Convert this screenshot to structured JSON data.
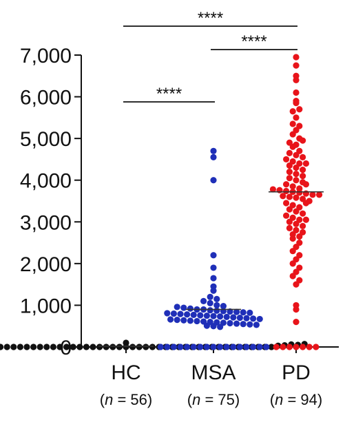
{
  "chart_data": {
    "type": "scatter",
    "title": "",
    "xlabel": "",
    "ylabel": "",
    "ylim": [
      0,
      7000
    ],
    "y_ticks": [
      0,
      1000,
      2000,
      3000,
      4000,
      5000,
      6000,
      7000
    ],
    "y_tick_labels": [
      "0",
      "1,000",
      "2,000",
      "3,000",
      "4,000",
      "5,000",
      "6,000",
      "7,000"
    ],
    "categories": [
      "HC",
      "MSA",
      "PD"
    ],
    "sample_size_labels": [
      {
        "open": "(",
        "n": "n",
        "rest": " = 56)"
      },
      {
        "open": "(",
        "n": "n",
        "rest": " = 75)"
      },
      {
        "open": "(",
        "n": "n",
        "rest": " = 94)"
      }
    ],
    "colors": {
      "HC": "#111111",
      "MSA": "#1f2fb8",
      "PD": "#e8141a"
    },
    "means": {
      "HC": 20,
      "MSA": 900,
      "PD": 3720
    },
    "significance": [
      {
        "from": "HC",
        "to": "MSA",
        "label": "****"
      },
      {
        "from": "MSA",
        "to": "PD",
        "label": "****"
      },
      {
        "from": "HC",
        "to": "PD",
        "label": "****"
      }
    ],
    "series": [
      {
        "name": "HC",
        "values": [
          0,
          0,
          0,
          0,
          0,
          0,
          0,
          0,
          0,
          0,
          0,
          0,
          0,
          0,
          0,
          0,
          0,
          0,
          0,
          0,
          0,
          0,
          0,
          0,
          0,
          0,
          0,
          0,
          0,
          0,
          0,
          0,
          0,
          0,
          0,
          0,
          0,
          0,
          0,
          0,
          0,
          0,
          0,
          0,
          0,
          0,
          0,
          0,
          0,
          0,
          30,
          40,
          60,
          50,
          70,
          100
        ]
      },
      {
        "name": "MSA",
        "values": [
          4700,
          4550,
          4000,
          2200,
          1900,
          1650,
          1450,
          1350,
          1200,
          1150,
          1100,
          1050,
          1000,
          980,
          960,
          940,
          920,
          900,
          900,
          880,
          870,
          860,
          850,
          840,
          830,
          820,
          810,
          800,
          790,
          780,
          770,
          760,
          750,
          740,
          730,
          720,
          710,
          700,
          690,
          680,
          670,
          660,
          650,
          640,
          630,
          620,
          610,
          600,
          590,
          580,
          570,
          560,
          550,
          540,
          530,
          510,
          500,
          480,
          0,
          0,
          0,
          0,
          0,
          0,
          0,
          0,
          0,
          0,
          0,
          0,
          0,
          0,
          0,
          0,
          0
        ]
      },
      {
        "name": "PD",
        "values": [
          6950,
          6750,
          6500,
          6400,
          6100,
          5850,
          5650,
          5500,
          5350,
          5200,
          5100,
          5000,
          4900,
          4850,
          4800,
          4700,
          4650,
          4600,
          4550,
          4500,
          4450,
          4400,
          4350,
          4300,
          4250,
          4200,
          4150,
          4100,
          4050,
          4000,
          3950,
          3900,
          3850,
          3800,
          3780,
          3760,
          3740,
          3720,
          3700,
          3680,
          3650,
          3620,
          3600,
          3580,
          3550,
          3500,
          3450,
          3400,
          3350,
          3300,
          3250,
          3200,
          3150,
          3100,
          3050,
          3000,
          2950,
          2900,
          2850,
          2800,
          2750,
          2700,
          2600,
          2500,
          2400,
          2300,
          2200,
          2100,
          2000,
          1900,
          1800,
          1700,
          1600,
          1500,
          1000,
          900,
          600,
          5900,
          5700,
          5300,
          4950,
          4400,
          3900,
          3650,
          3450,
          3050,
          2650,
          0,
          0,
          0,
          0,
          0,
          0,
          0
        ]
      }
    ]
  }
}
